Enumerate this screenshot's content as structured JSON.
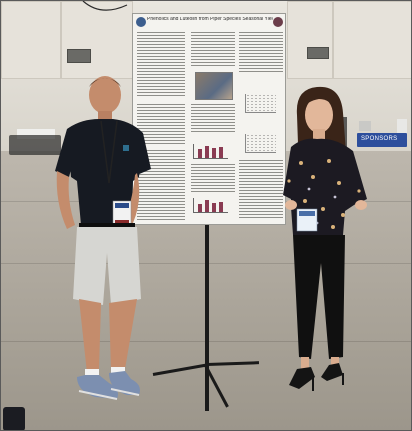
{
  "scene": {
    "poster_title": "Phenolics and Luteolin from Piper Species Seasonal Yields and Cytotoxic Effects on Cancer Cells",
    "banner_text": "SPONSORS",
    "colors": {
      "wall": "#e2ded6",
      "floor": "#a9a398",
      "poster": "#f4f3ef",
      "banner": "#2d4e9c",
      "shirt_man": "#161a22",
      "shorts_man": "#d6d6d2",
      "blouse_woman": "#1c1a22",
      "pants_woman": "#101010",
      "chart_bars": "#8a3b52"
    }
  }
}
